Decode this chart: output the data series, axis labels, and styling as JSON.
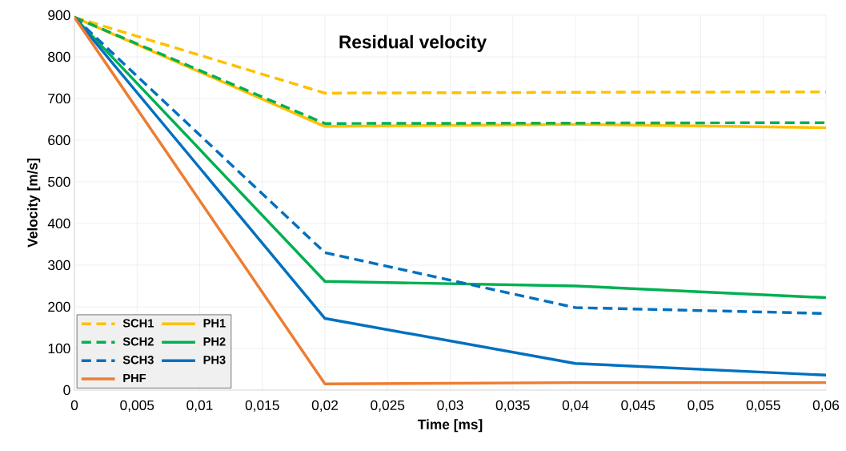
{
  "chart_data": {
    "type": "line",
    "title": "Residual velocity",
    "xlabel": "Time [ms]",
    "ylabel": "Velocity [m/s]",
    "x": [
      0,
      0.02,
      0.04,
      0.06
    ],
    "series": [
      {
        "name": "SCH1",
        "color": "#ffc000",
        "line_style": "dashed",
        "values": [
          895,
          713,
          715,
          716
        ]
      },
      {
        "name": "PH1",
        "color": "#ffc000",
        "line_style": "solid",
        "values": [
          895,
          633,
          638,
          630
        ]
      },
      {
        "name": "SCH2",
        "color": "#00b050",
        "line_style": "dashed",
        "values": [
          895,
          640,
          641,
          642
        ]
      },
      {
        "name": "PH2",
        "color": "#00b050",
        "line_style": "solid",
        "values": [
          895,
          261,
          250,
          222
        ]
      },
      {
        "name": "SCH3",
        "color": "#0070c0",
        "line_style": "dashed",
        "values": [
          895,
          330,
          198,
          184
        ]
      },
      {
        "name": "PH3",
        "color": "#0070c0",
        "line_style": "solid",
        "values": [
          895,
          172,
          64,
          36
        ]
      },
      {
        "name": "PHF",
        "color": "#ed7d31",
        "line_style": "solid",
        "values": [
          895,
          15,
          18,
          18
        ]
      }
    ],
    "xlim": [
      0,
      0.06
    ],
    "ylim": [
      0,
      900
    ],
    "xticks": [
      0,
      {
        "value": 0.005,
        "label": "0,005"
      },
      {
        "value": 0.01,
        "label": "0,01"
      },
      {
        "value": 0.015,
        "label": "0,015"
      },
      {
        "value": 0.02,
        "label": "0,02"
      },
      {
        "value": 0.025,
        "label": "0,025"
      },
      {
        "value": 0.03,
        "label": "0,03"
      },
      {
        "value": 0.035,
        "label": "0,035"
      },
      {
        "value": 0.04,
        "label": "0,04"
      },
      {
        "value": 0.045,
        "label": "0,045"
      },
      {
        "value": 0.05,
        "label": "0,05"
      },
      {
        "value": 0.055,
        "label": "0,055"
      },
      {
        "value": 0.06,
        "label": "0,06"
      }
    ],
    "yticks": [
      0,
      100,
      200,
      300,
      400,
      500,
      600,
      700,
      800,
      900
    ],
    "grid": true,
    "legend": "bottom left"
  }
}
